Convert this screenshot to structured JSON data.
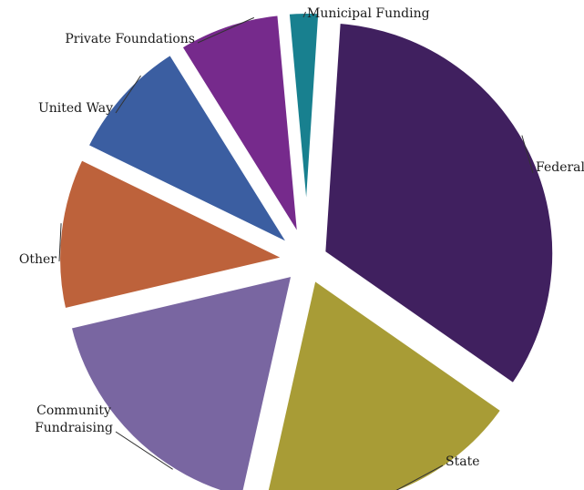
{
  "chart_data": {
    "type": "pie",
    "title": "",
    "slices": [
      {
        "label": "Federal",
        "value": 34,
        "color": "#40205f"
      },
      {
        "label": "State",
        "value": 19,
        "color": "#a89c36"
      },
      {
        "label": "Community\nFundraising",
        "value": 18,
        "color": "#7966a1"
      },
      {
        "label": "Other",
        "value": 11,
        "color": "#bd623b"
      },
      {
        "label": "United Way",
        "value": 9,
        "color": "#3b5ea1"
      },
      {
        "label": "Private Foundations",
        "value": 7.5,
        "color": "#762a8c"
      },
      {
        "label": "Municipal Funding",
        "value": 2.5,
        "color": "#18808f"
      }
    ],
    "legend": "none",
    "labels": "outside with leader lines"
  }
}
